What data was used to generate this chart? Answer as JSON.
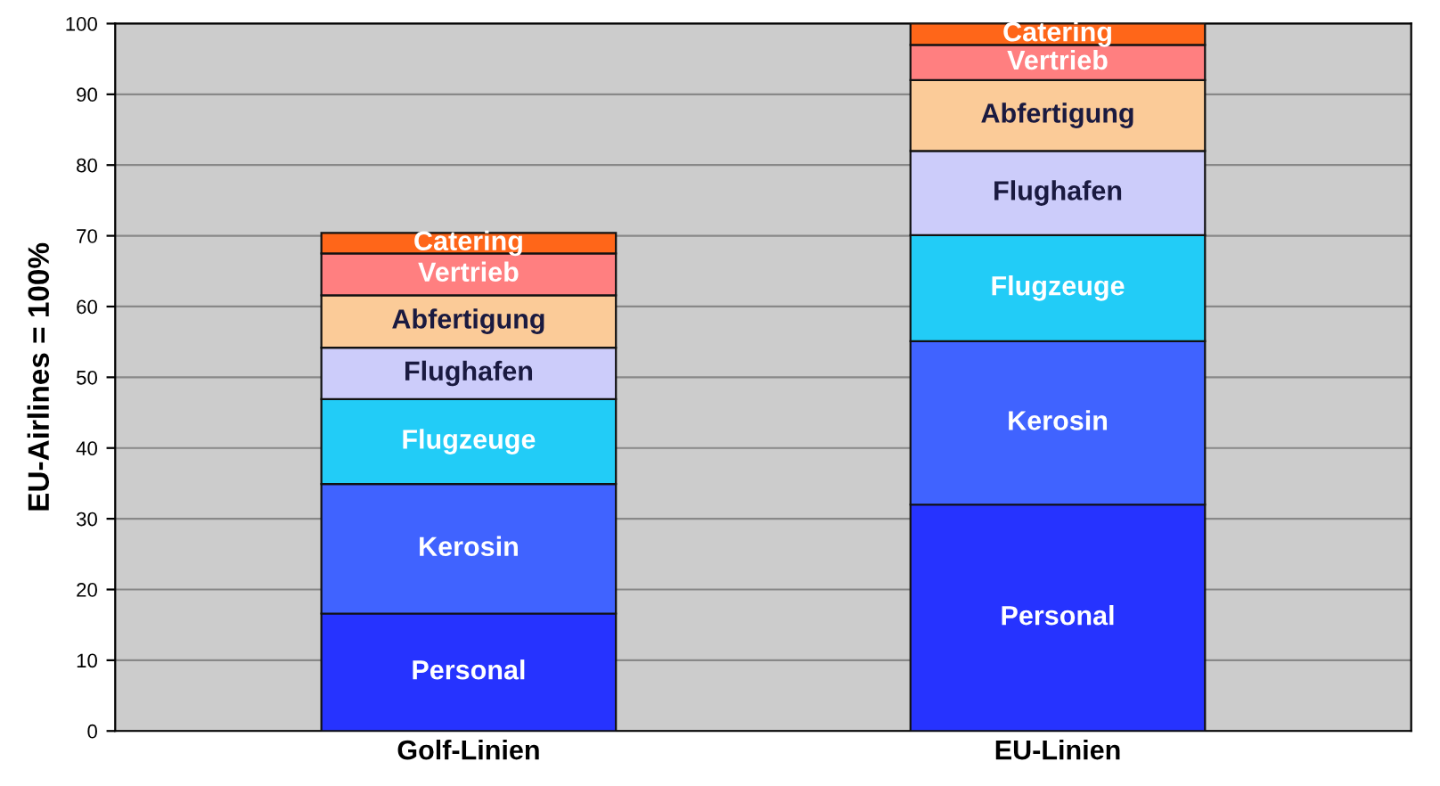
{
  "chart_data": {
    "type": "bar",
    "stacked": true,
    "ylabel": "EU-Airlines = 100%",
    "categories": [
      "Golf-Linien",
      "EU-Linien"
    ],
    "series": [
      {
        "name": "Personal",
        "color": "#2633ff",
        "values": [
          16.6,
          32.0
        ]
      },
      {
        "name": "Kerosin",
        "color": "#4063ff",
        "values": [
          18.3,
          23.1
        ]
      },
      {
        "name": "Flugzeuge",
        "color": "#22ccf7",
        "values": [
          12.0,
          15.0
        ]
      },
      {
        "name": "Flughafen",
        "color": "#ccccfa",
        "values": [
          7.3,
          11.9
        ]
      },
      {
        "name": "Abfertigung",
        "color": "#fbcb98",
        "values": [
          7.4,
          10.0
        ]
      },
      {
        "name": "Vertrieb",
        "color": "#ff7f80",
        "values": [
          5.9,
          5.0
        ]
      },
      {
        "name": "Catering",
        "color": "#ff6619",
        "values": [
          2.9,
          3.0
        ]
      }
    ],
    "ylim": [
      0,
      100
    ],
    "yticks": [
      0,
      10,
      20,
      30,
      40,
      50,
      60,
      70,
      80,
      90,
      100
    ],
    "grid": "y",
    "legend": false
  }
}
